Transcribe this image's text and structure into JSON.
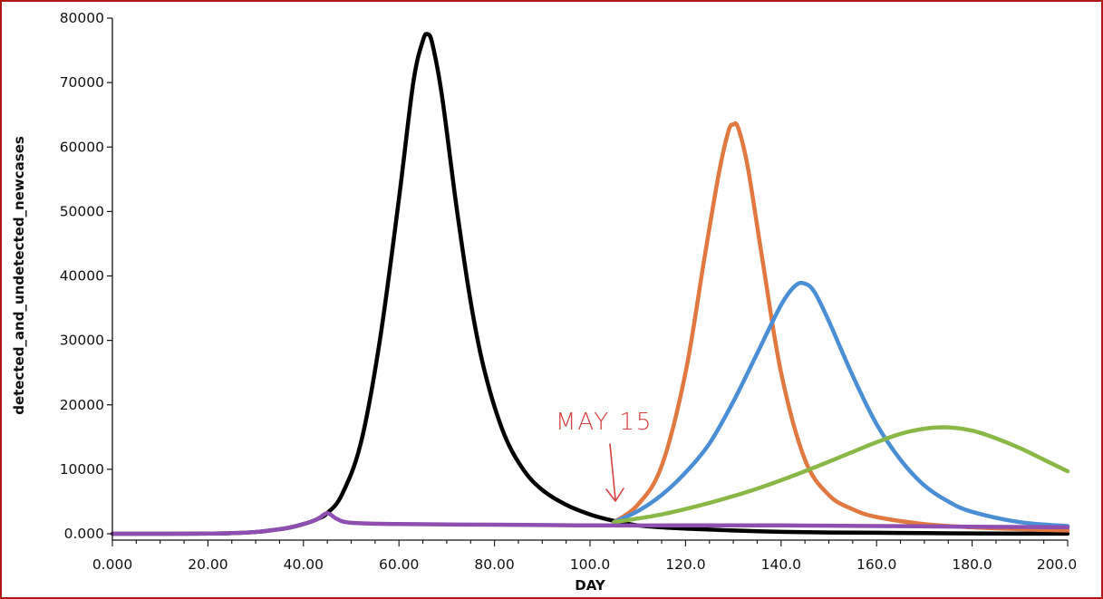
{
  "chart_data": {
    "type": "line",
    "title": "",
    "xlabel": "DAY",
    "ylabel": "detected_and_undetected_newcases",
    "xlim": [
      0,
      200
    ],
    "ylim": [
      0,
      80000
    ],
    "x_tick_labels": [
      "0.000",
      "20.00",
      "40.00",
      "60.00",
      "80.00",
      "100.0",
      "120.0",
      "140.0",
      "160.0",
      "180.0",
      "200.0"
    ],
    "x_tick_values": [
      0,
      20,
      40,
      60,
      80,
      100,
      120,
      140,
      160,
      180,
      200
    ],
    "y_tick_labels": [
      "0.000",
      "10000",
      "20000",
      "30000",
      "40000",
      "50000",
      "60000",
      "70000",
      "80000"
    ],
    "y_tick_values": [
      0,
      10000,
      20000,
      30000,
      40000,
      50000,
      60000,
      70000,
      80000
    ],
    "grid": false,
    "legend": "none",
    "annotation": {
      "text": "MAY 15",
      "x": 105,
      "color": "#d64040"
    },
    "series": [
      {
        "color": "#000000",
        "x": [
          0,
          25,
          35,
          40,
          43,
          45,
          48,
          52,
          56,
          60,
          63,
          65,
          66,
          67,
          69,
          72,
          75,
          78,
          82,
          86,
          90,
          95,
          100,
          105,
          110,
          115,
          120,
          130,
          140,
          150,
          160,
          170,
          180,
          190,
          200
        ],
        "y": [
          0,
          100,
          700,
          1500,
          2300,
          3200,
          6000,
          14000,
          30000,
          52000,
          70000,
          76500,
          77500,
          76000,
          68000,
          51000,
          36000,
          25000,
          15500,
          10000,
          6800,
          4500,
          3000,
          2000,
          1300,
          1000,
          800,
          500,
          300,
          200,
          150,
          100,
          50,
          20,
          10
        ]
      },
      {
        "color": "#e07840",
        "x": [
          105,
          110,
          115,
          120,
          124,
          127,
          129,
          130,
          131,
          133,
          136,
          140,
          145,
          150,
          155,
          160,
          170,
          180,
          190,
          200
        ],
        "y": [
          1800,
          4500,
          10500,
          25000,
          43000,
          56000,
          62500,
          63500,
          63000,
          57000,
          43000,
          25000,
          11500,
          6000,
          3800,
          2600,
          1500,
          1000,
          700,
          500
        ]
      },
      {
        "color": "#4a8fd6",
        "x": [
          105,
          110,
          115,
          120,
          125,
          130,
          135,
          140,
          143,
          145,
          147,
          150,
          155,
          160,
          165,
          170,
          175,
          180,
          190,
          200
        ],
        "y": [
          1800,
          3500,
          6000,
          9500,
          14000,
          20500,
          28000,
          35500,
          38500,
          38800,
          37500,
          33000,
          24500,
          17000,
          11500,
          7500,
          5000,
          3400,
          1800,
          1200
        ]
      },
      {
        "color": "#8ab846",
        "x": [
          105,
          115,
          125,
          135,
          145,
          155,
          160,
          165,
          170,
          175,
          180,
          185,
          190,
          195,
          200
        ],
        "y": [
          1800,
          3000,
          4800,
          7000,
          9700,
          12700,
          14200,
          15500,
          16300,
          16500,
          16000,
          14800,
          13300,
          11500,
          9700
        ]
      },
      {
        "color": "#8e4fb0",
        "x": [
          0,
          25,
          35,
          40,
          43,
          45,
          47,
          50,
          60,
          80,
          100,
          120,
          140,
          160,
          180,
          200
        ],
        "y": [
          0,
          100,
          700,
          1500,
          2300,
          3200,
          2300,
          1700,
          1500,
          1400,
          1300,
          1300,
          1300,
          1200,
          1100,
          1000
        ]
      }
    ]
  }
}
